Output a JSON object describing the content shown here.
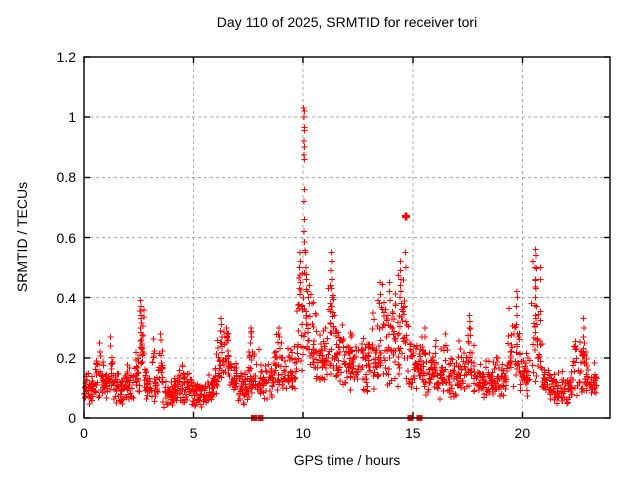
{
  "window": {
    "background": "#ffffff"
  },
  "chart_data": {
    "type": "scatter",
    "title": "Day 110 of 2025, SRMTID for receiver tori",
    "xlabel": "GPS time / hours",
    "ylabel": "SRMTID / TECUs",
    "xlim": [
      0,
      24
    ],
    "ylim": [
      0,
      1.2
    ],
    "grid": "dotted",
    "legend": "none",
    "marker": "plus",
    "marker_color": "#ff0000",
    "grid_color": "#aaaaaa",
    "axis_color": "#000000",
    "x_ticks": [
      {
        "v": 0,
        "label": "0"
      },
      {
        "v": 5,
        "label": "5"
      },
      {
        "v": 10,
        "label": "10"
      },
      {
        "v": 15,
        "label": "15"
      },
      {
        "v": 20,
        "label": "20"
      }
    ],
    "y_ticks": [
      {
        "v": 0,
        "label": "0"
      },
      {
        "v": 0.2,
        "label": "0.2"
      },
      {
        "v": 0.4,
        "label": "0.4"
      },
      {
        "v": 0.6,
        "label": "0.6"
      },
      {
        "v": 0.8,
        "label": "0.8"
      },
      {
        "v": 1,
        "label": "1"
      },
      {
        "v": 1.2,
        "label": "1.2"
      }
    ],
    "series": {
      "name": "SRMTID",
      "baseline_bands": [
        [
          0.0,
          0.5,
          40,
          0.04,
          0.09,
          0.16
        ],
        [
          0.5,
          0.9,
          32,
          0.05,
          0.1,
          0.22
        ],
        [
          0.9,
          1.1,
          16,
          0.05,
          0.1,
          0.15
        ],
        [
          1.1,
          1.35,
          20,
          0.06,
          0.12,
          0.27
        ],
        [
          1.35,
          1.8,
          36,
          0.04,
          0.09,
          0.16
        ],
        [
          1.8,
          2.3,
          40,
          0.05,
          0.1,
          0.2
        ],
        [
          2.3,
          2.55,
          20,
          0.06,
          0.12,
          0.22
        ],
        [
          2.55,
          2.75,
          18,
          0.1,
          0.2,
          0.39
        ],
        [
          2.75,
          3.1,
          28,
          0.05,
          0.11,
          0.2
        ],
        [
          3.1,
          3.6,
          40,
          0.05,
          0.11,
          0.28
        ],
        [
          3.6,
          4.2,
          48,
          0.03,
          0.08,
          0.14
        ],
        [
          4.2,
          5.0,
          64,
          0.04,
          0.1,
          0.18
        ],
        [
          5.0,
          5.6,
          48,
          0.03,
          0.07,
          0.13
        ],
        [
          5.6,
          6.0,
          32,
          0.04,
          0.09,
          0.16
        ],
        [
          6.0,
          6.3,
          24,
          0.08,
          0.16,
          0.3
        ],
        [
          6.3,
          6.6,
          24,
          0.1,
          0.18,
          0.35
        ],
        [
          6.6,
          7.0,
          32,
          0.06,
          0.13,
          0.24
        ],
        [
          7.0,
          7.5,
          40,
          0.04,
          0.09,
          0.16
        ],
        [
          7.5,
          8.0,
          36,
          0.06,
          0.12,
          0.3
        ],
        [
          8.0,
          8.6,
          44,
          0.06,
          0.11,
          0.2
        ],
        [
          8.6,
          9.2,
          44,
          0.07,
          0.13,
          0.3
        ],
        [
          9.2,
          9.7,
          36,
          0.08,
          0.14,
          0.26
        ],
        [
          9.7,
          10.0,
          22,
          0.12,
          0.22,
          0.5
        ],
        [
          10.0,
          10.2,
          14,
          0.15,
          0.3,
          0.6
        ],
        [
          10.2,
          10.6,
          30,
          0.12,
          0.22,
          0.45
        ],
        [
          10.6,
          11.1,
          40,
          0.1,
          0.18,
          0.32
        ],
        [
          11.1,
          11.5,
          30,
          0.12,
          0.25,
          0.5
        ],
        [
          11.5,
          12.1,
          48,
          0.1,
          0.18,
          0.32
        ],
        [
          12.1,
          13.0,
          72,
          0.08,
          0.17,
          0.3
        ],
        [
          13.0,
          13.6,
          48,
          0.08,
          0.18,
          0.4
        ],
        [
          13.6,
          14.2,
          48,
          0.1,
          0.22,
          0.45
        ],
        [
          14.2,
          14.8,
          44,
          0.1,
          0.24,
          0.52
        ],
        [
          14.8,
          15.5,
          52,
          0.08,
          0.16,
          0.3
        ],
        [
          15.5,
          16.1,
          44,
          0.06,
          0.13,
          0.28
        ],
        [
          16.1,
          17.1,
          72,
          0.05,
          0.12,
          0.25
        ],
        [
          17.1,
          17.5,
          28,
          0.07,
          0.14,
          0.28
        ],
        [
          17.5,
          17.8,
          20,
          0.08,
          0.16,
          0.34
        ],
        [
          17.8,
          18.6,
          60,
          0.05,
          0.11,
          0.2
        ],
        [
          18.6,
          19.3,
          52,
          0.06,
          0.12,
          0.22
        ],
        [
          19.3,
          19.9,
          40,
          0.08,
          0.18,
          0.42
        ],
        [
          19.9,
          20.4,
          36,
          0.06,
          0.12,
          0.22
        ],
        [
          20.4,
          20.9,
          36,
          0.1,
          0.22,
          0.56
        ],
        [
          20.9,
          21.5,
          44,
          0.05,
          0.1,
          0.18
        ],
        [
          21.5,
          22.3,
          60,
          0.04,
          0.09,
          0.16
        ],
        [
          22.3,
          23.0,
          48,
          0.06,
          0.13,
          0.3
        ],
        [
          23.0,
          23.4,
          28,
          0.06,
          0.12,
          0.2
        ]
      ],
      "peak_points": [
        [
          2.58,
          0.39
        ],
        [
          2.6,
          0.37
        ],
        [
          2.57,
          0.355
        ],
        [
          2.61,
          0.34
        ],
        [
          2.59,
          0.33
        ],
        [
          2.62,
          0.315
        ],
        [
          2.58,
          0.3
        ],
        [
          2.6,
          0.285
        ],
        [
          2.63,
          0.26
        ],
        [
          2.65,
          0.24
        ],
        [
          2.7,
          0.22
        ],
        [
          0.7,
          0.25
        ],
        [
          0.72,
          0.22
        ],
        [
          1.2,
          0.27
        ],
        [
          1.22,
          0.24
        ],
        [
          3.5,
          0.28
        ],
        [
          3.52,
          0.26
        ],
        [
          6.25,
          0.33
        ],
        [
          6.27,
          0.31
        ],
        [
          6.23,
          0.29
        ],
        [
          6.3,
          0.27
        ],
        [
          6.28,
          0.25
        ],
        [
          6.5,
          0.3
        ],
        [
          6.52,
          0.27
        ],
        [
          6.48,
          0.25
        ],
        [
          7.6,
          0.25
        ],
        [
          7.62,
          0.3
        ],
        [
          7.64,
          0.27
        ],
        [
          8.9,
          0.3
        ],
        [
          8.92,
          0.27
        ],
        [
          9.0,
          0.25
        ],
        [
          9.83,
          0.43
        ],
        [
          9.84,
          0.5
        ],
        [
          9.85,
          0.55
        ],
        [
          9.85,
          0.41
        ],
        [
          9.86,
          0.475
        ],
        [
          9.87,
          0.52
        ],
        [
          9.88,
          0.45
        ],
        [
          10.02,
          1.03
        ],
        [
          10.05,
          1.02
        ],
        [
          10.04,
          1.0
        ],
        [
          10.06,
          0.965
        ],
        [
          10.05,
          0.955
        ],
        [
          10.03,
          0.92
        ],
        [
          10.06,
          0.9
        ],
        [
          10.04,
          0.875
        ],
        [
          10.05,
          0.86
        ],
        [
          10.07,
          0.76
        ],
        [
          10.03,
          0.72
        ],
        [
          10.05,
          0.66
        ],
        [
          10.04,
          0.62
        ],
        [
          10.06,
          0.585
        ],
        [
          10.1,
          0.55
        ],
        [
          10.12,
          0.5
        ],
        [
          10.15,
          0.46
        ],
        [
          10.2,
          0.42
        ],
        [
          10.25,
          0.4
        ],
        [
          10.3,
          0.44
        ],
        [
          10.35,
          0.41
        ],
        [
          10.4,
          0.38
        ],
        [
          11.25,
          0.38
        ],
        [
          11.28,
          0.49
        ],
        [
          11.29,
          0.43
        ],
        [
          11.3,
          0.55
        ],
        [
          11.3,
          0.37
        ],
        [
          11.31,
          0.46
        ],
        [
          11.32,
          0.52
        ],
        [
          11.33,
          0.4
        ],
        [
          11.35,
          0.35
        ],
        [
          13.48,
          0.38
        ],
        [
          13.5,
          0.45
        ],
        [
          13.52,
          0.41
        ],
        [
          13.93,
          0.42
        ],
        [
          13.95,
          0.45
        ],
        [
          13.97,
          0.39
        ],
        [
          14.42,
          0.4
        ],
        [
          14.43,
          0.49
        ],
        [
          14.44,
          0.44
        ],
        [
          14.45,
          0.52
        ],
        [
          14.46,
          0.42
        ],
        [
          14.47,
          0.46
        ],
        [
          14.48,
          0.38
        ],
        [
          14.5,
          0.36
        ],
        [
          14.68,
          0.55
        ],
        [
          14.7,
          0.5
        ],
        [
          15.55,
          0.3
        ],
        [
          15.57,
          0.27
        ],
        [
          16.5,
          0.28
        ],
        [
          17.57,
          0.25
        ],
        [
          17.58,
          0.3
        ],
        [
          17.6,
          0.34
        ],
        [
          17.62,
          0.32
        ],
        [
          17.63,
          0.275
        ],
        [
          19.73,
          0.37
        ],
        [
          19.74,
          0.31
        ],
        [
          19.75,
          0.42
        ],
        [
          19.76,
          0.34
        ],
        [
          19.77,
          0.4
        ],
        [
          19.78,
          0.28
        ],
        [
          20.58,
          0.5
        ],
        [
          20.59,
          0.4
        ],
        [
          20.6,
          0.56
        ],
        [
          20.6,
          0.34
        ],
        [
          20.61,
          0.46
        ],
        [
          20.62,
          0.54
        ],
        [
          20.63,
          0.43
        ],
        [
          20.64,
          0.37
        ],
        [
          20.66,
          0.31
        ],
        [
          22.78,
          0.27
        ],
        [
          22.8,
          0.33
        ],
        [
          22.82,
          0.3
        ],
        [
          22.84,
          0.25
        ]
      ],
      "bold_points": [
        [
          14.7,
          0.67
        ],
        [
          22.8,
          0.21
        ]
      ],
      "zero_square_points_x": [
        7.75,
        8.05,
        14.9,
        15.3
      ]
    }
  }
}
